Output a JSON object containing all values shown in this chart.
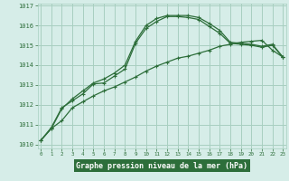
{
  "hours": [
    0,
    1,
    2,
    3,
    4,
    5,
    6,
    7,
    8,
    9,
    10,
    11,
    12,
    13,
    14,
    15,
    16,
    17,
    18,
    19,
    20,
    21,
    22,
    23
  ],
  "line_top": [
    1010.2,
    1010.8,
    1011.8,
    1012.3,
    1012.7,
    1013.1,
    1013.3,
    1013.6,
    1014.0,
    1015.2,
    1016.0,
    1016.35,
    1016.5,
    1016.5,
    1016.5,
    1016.4,
    1016.1,
    1015.75,
    1015.15,
    1015.1,
    1015.05,
    1014.95,
    1015.05,
    1014.4
  ],
  "line_mid": [
    1010.2,
    1010.85,
    1011.85,
    1012.2,
    1012.55,
    1013.05,
    1013.1,
    1013.45,
    1013.8,
    1015.1,
    1015.85,
    1016.2,
    1016.45,
    1016.45,
    1016.4,
    1016.3,
    1015.95,
    1015.6,
    1015.1,
    1015.05,
    1015.0,
    1014.9,
    1015.0,
    1014.4
  ],
  "line_bot": [
    1010.2,
    1010.8,
    1011.2,
    1011.85,
    1012.15,
    1012.45,
    1012.7,
    1012.9,
    1013.15,
    1013.4,
    1013.7,
    1013.95,
    1014.15,
    1014.35,
    1014.45,
    1014.6,
    1014.75,
    1014.95,
    1015.05,
    1015.15,
    1015.2,
    1015.25,
    1014.75,
    1014.4
  ],
  "bg_color": "#d6ede8",
  "grid_color": "#a8cfc0",
  "line_color": "#2d6e3a",
  "xlabel": "Graphe pression niveau de la mer (hPa)",
  "xlabel_bg": "#2d6e3a",
  "xlabel_fg": "#ffffff",
  "ylim": [
    1009.8,
    1017.1
  ],
  "yticks": [
    1010,
    1011,
    1012,
    1013,
    1014,
    1015,
    1016,
    1017
  ],
  "xticks": [
    0,
    1,
    2,
    3,
    4,
    5,
    6,
    7,
    8,
    9,
    10,
    11,
    12,
    13,
    14,
    15,
    16,
    17,
    18,
    19,
    20,
    21,
    22,
    23
  ]
}
